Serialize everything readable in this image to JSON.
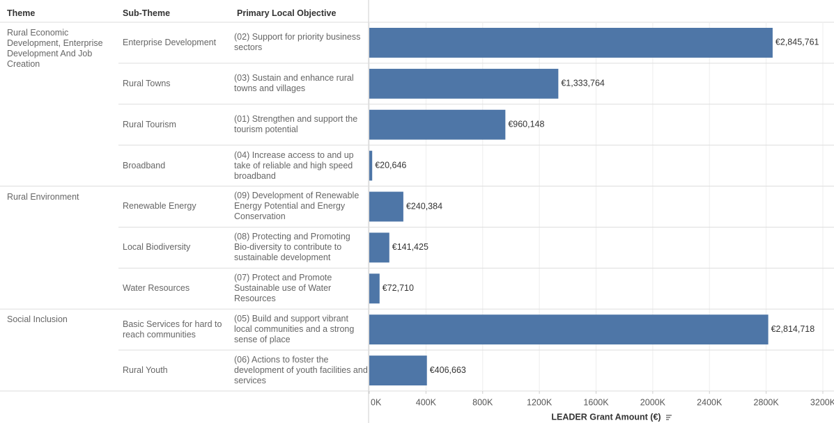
{
  "chart_data": {
    "type": "bar",
    "orientation": "horizontal",
    "column_headers": [
      "Theme",
      "Sub-Theme",
      "Primary Local Objective"
    ],
    "themes": [
      "Rural Economic Development, Enterprise Development And Job Creation",
      null,
      null,
      null,
      "Rural Environment",
      null,
      null,
      "Social Inclusion",
      null
    ],
    "sub_themes": [
      "Enterprise Development",
      "Rural Towns",
      "Rural Tourism",
      "Broadband",
      "Renewable Energy",
      "Local Biodiversity",
      "Water Resources",
      "Basic Services for hard to reach communities",
      "Rural Youth"
    ],
    "categories": [
      "(02) Support for priority business sectors",
      "(03) Sustain and enhance rural towns and villages",
      "(01) Strengthen and support the tourism potential",
      "(04) Increase access to and up take of reliable and high speed broadband",
      "(09) Development of Renewable Energy Potential and Energy Conservation",
      "(08) Protecting and Promoting Bio-diversity to contribute to sustainable development",
      "(07) Protect and Promote Sustainable use of Water Resources",
      "(05) Build and support vibrant local communities and a strong sense of place",
      "(06) Actions to foster the development of youth facilities and services"
    ],
    "values": [
      2845761,
      1333764,
      960148,
      20646,
      240384,
      141425,
      72710,
      2814718,
      406663
    ],
    "value_labels": [
      "€2,845,761",
      "€1,333,764",
      "€960,148",
      "€20,646",
      "€240,384",
      "€141,425",
      "€72,710",
      "€2,814,718",
      "€406,663"
    ],
    "color": "#4e76a7",
    "xlabel": "LEADER Grant Amount (€)",
    "xlim": [
      0,
      3200000
    ],
    "xticks": [
      {
        "value": 0,
        "label": "0K"
      },
      {
        "value": 400000,
        "label": "400K"
      },
      {
        "value": 800000,
        "label": "800K"
      },
      {
        "value": 1200000,
        "label": "1200K"
      },
      {
        "value": 1600000,
        "label": "1600K"
      },
      {
        "value": 2000000,
        "label": "2000K"
      },
      {
        "value": 2400000,
        "label": "2400K"
      },
      {
        "value": 2800000,
        "label": "2800K"
      },
      {
        "value": 3200000,
        "label": "3200K"
      }
    ],
    "grid": true
  }
}
